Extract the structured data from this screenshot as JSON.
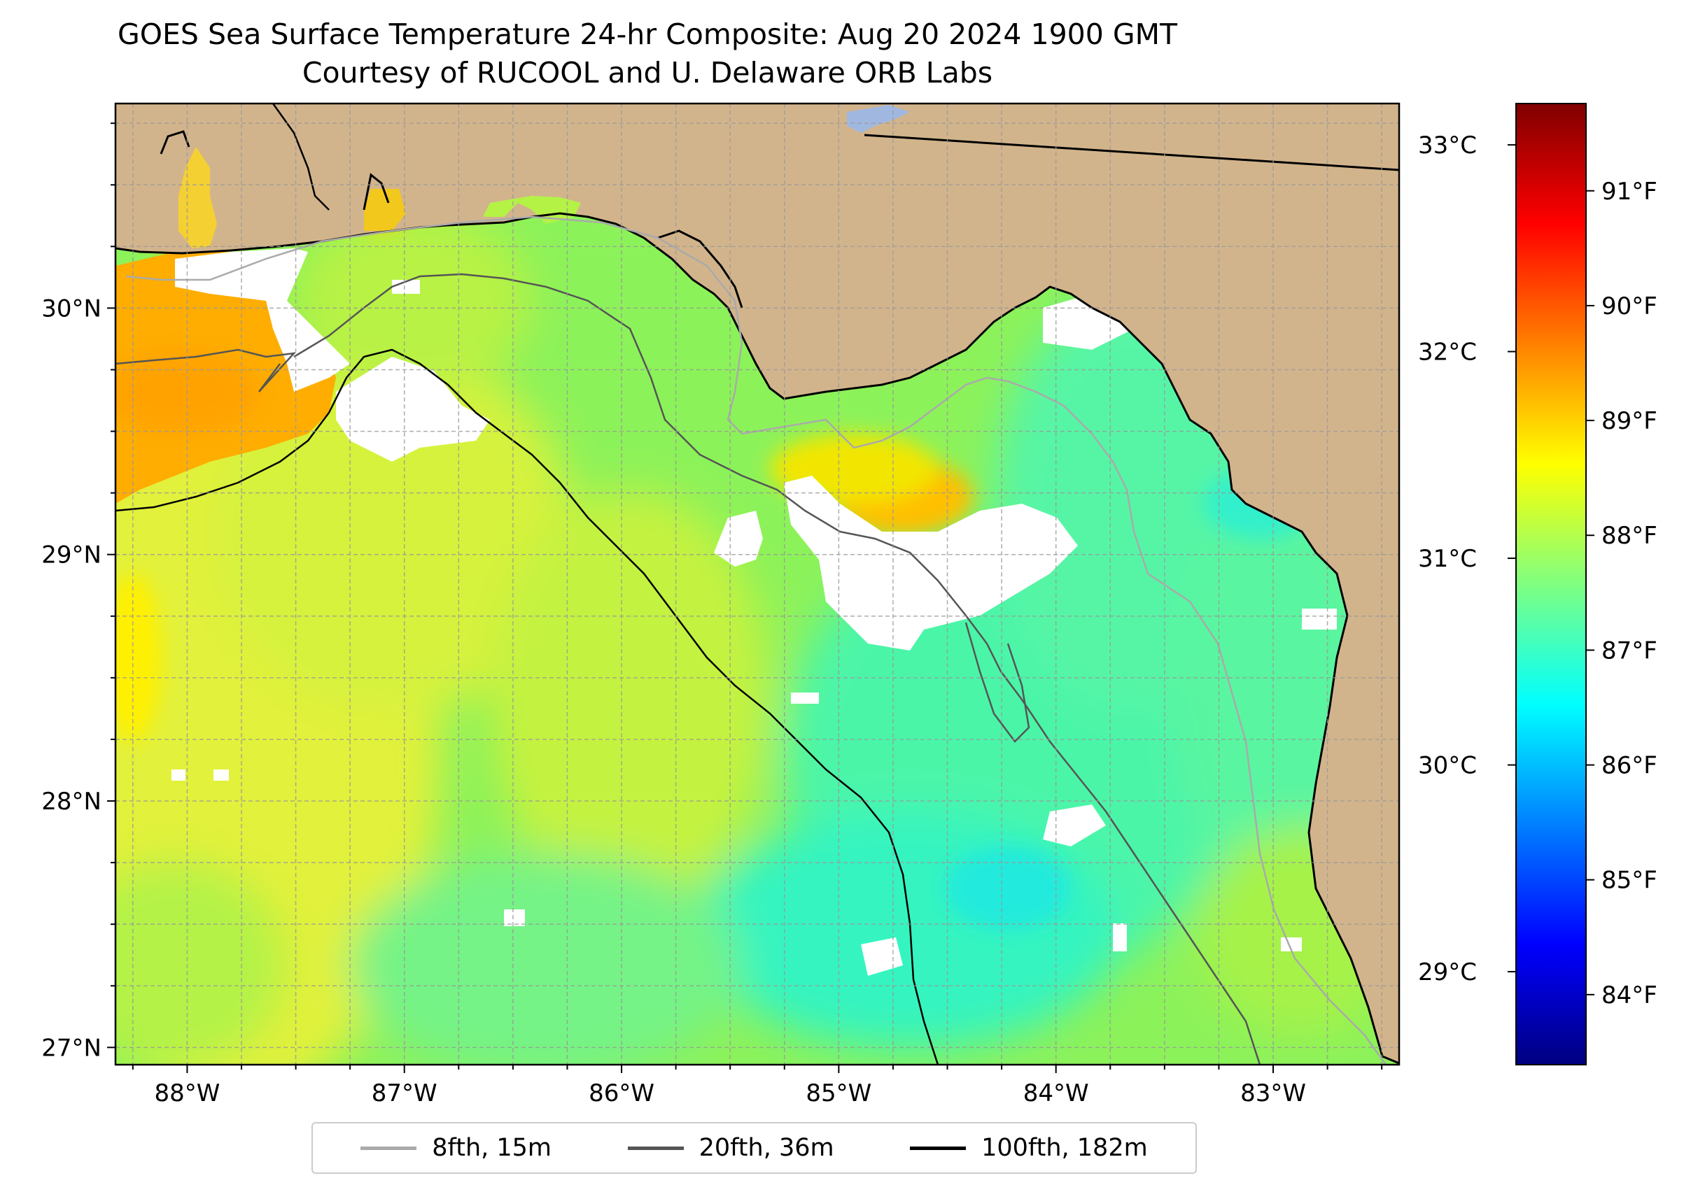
{
  "title": {
    "line1": "GOES Sea Surface Temperature 24-hr Composite: Aug 20 2024 1900 GMT",
    "line2": "Courtesy of RUCOOL and U. Delaware ORB Labs"
  },
  "map": {
    "lon_range": [
      -88.33,
      -82.42
    ],
    "lat_range": [
      26.93,
      30.83
    ],
    "lon_ticks": [
      "88°W",
      "87°W",
      "86°W",
      "85°W",
      "84°W",
      "83°W"
    ],
    "lat_ticks": [
      "27°N",
      "28°N",
      "29°N",
      "30°N"
    ],
    "land_color": "#d2b48c",
    "no_data_color": "#ffffff",
    "colormap": "jet",
    "gridlines": true
  },
  "colorbar": {
    "celsius_labels": [
      "33°C",
      "32°C",
      "31°C",
      "30°C",
      "29°C"
    ],
    "fahrenheit_labels": [
      "91°F",
      "90°F",
      "89°F",
      "88°F",
      "87°F",
      "86°F",
      "85°F",
      "84°F"
    ],
    "celsius_range": [
      28.55,
      33.2
    ],
    "colors": [
      "#000080",
      "#0000ff",
      "#0080ff",
      "#00ffff",
      "#80ff80",
      "#ffff00",
      "#ff8000",
      "#ff0000",
      "#800000"
    ]
  },
  "legend": {
    "items": [
      {
        "label": "8fth, 15m",
        "color": "#aaaaaa"
      },
      {
        "label": "20fth, 36m",
        "color": "#555555"
      },
      {
        "label": "100fth, 182m",
        "color": "#000000"
      }
    ]
  }
}
